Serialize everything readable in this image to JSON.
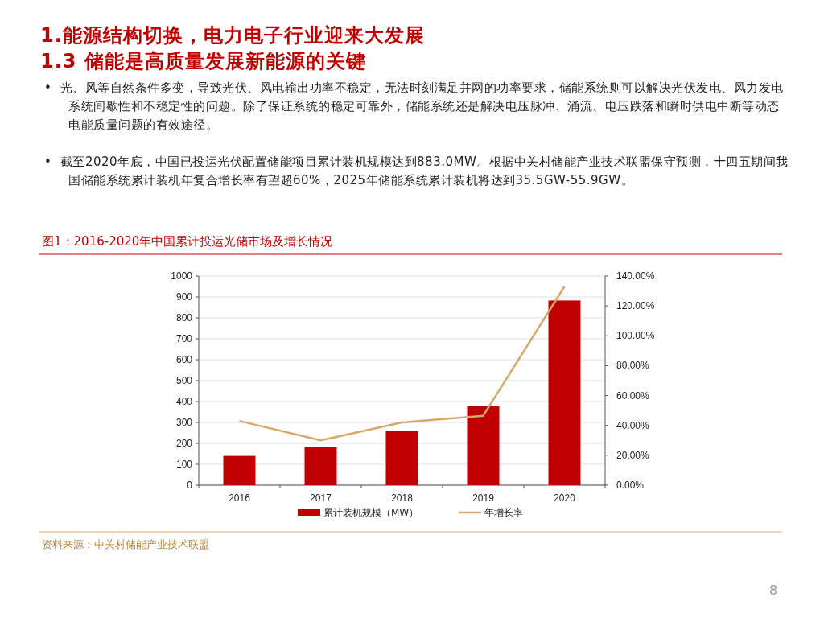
{
  "chart_data": {
    "type": "bar",
    "title": "1.能源结构切换，电力电子行业迎来大发展",
    "subtitle": "1.3 储能是高质量发展新能源的关键",
    "annotations": [
      "•  光、风等自然条件多变，导致光伏、风电输出功率不稳定，无法时刻满足并网的功率要求，储能系统则可以解决光伏发电、风力发电系统间歇性和不稳定性的问题。除了保证系统的稳定可靠外，储能系统还是解决电压脉冲、涌流、电压跌落和瞬时供电中断等动态电能质量问题的有效途径。",
      "•  截至2020年底，中国已投运光伏配置储能项目累计装机规模达到883.0MW。根据中关村储能产业技术联盟保守预测，十四五期间我国储能系统累计装机年复合增长率有望超60%，2025年储能系统累计装机将达到35.5GW-55.9GW。",
      "图1：2016-2020年中国累计投运光储市场及增长情况",
      "资料来源：中关村储能产业技术联盟",
      "8"
    ],
    "categories": [
      "2016",
      "2017",
      "2018",
      "2019",
      "2020"
    ],
    "series": [
      {
        "name": "累计装机规模（MW）",
        "color": "#c00000",
        "values": [
          140,
          182,
          258,
          378,
          883
        ]
      },
      {
        "name": "年增长率",
        "type": "line",
        "axis": "y2",
        "color": "#d4a96a",
        "values": [
          43,
          30,
          42,
          46.5,
          133
        ]
      }
    ],
    "ylim": [
      0,
      1000
    ],
    "yticks": [
      0,
      100,
      200,
      300,
      400,
      500,
      600,
      700,
      800,
      900,
      1000
    ],
    "y2lim": [
      0,
      140
    ],
    "y2ticks": [
      {
        "value": 0,
        "label": "0.00%"
      },
      {
        "value": 20,
        "label": "20.00%"
      },
      {
        "value": 40,
        "label": "40.00%"
      },
      {
        "value": 60,
        "label": "60.00%"
      },
      {
        "value": 80,
        "label": "80.00%"
      },
      {
        "value": 100,
        "label": "100.00%"
      },
      {
        "value": 120,
        "label": "120.00%"
      },
      {
        "value": 140,
        "label": "140.00%"
      }
    ],
    "grid": "y",
    "legend": "bottom"
  }
}
